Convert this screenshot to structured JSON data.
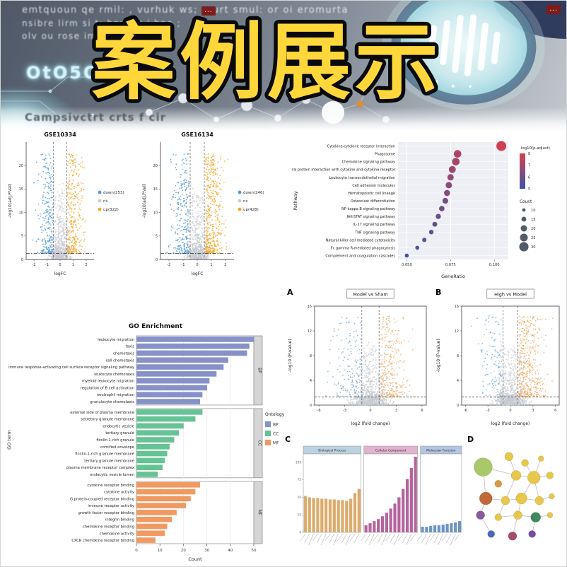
{
  "banner": {
    "title": "案例展示",
    "lines": [
      "emtquoun qe rmil: , vurhuk ws; :ourt smul: or oi eromurta",
      "nsibre lirm si t: hnwsiq i bno ;",
      "olv ou rose im-"
    ],
    "glow_text": "OtO5O1C",
    "caption": "Campsivctrt crts f cir",
    "badge": "...",
    "colors": {
      "title_fill": "#ffd73a",
      "title_stroke": "#0a0a0a",
      "accent_teal": "#bfe9ee",
      "bg_dark": "#515b69"
    }
  },
  "chart_data": [
    {
      "id": "volcano_gse10334",
      "type": "scatter",
      "subtype": "volcano",
      "title": "GSE10334",
      "xlabel": "logFC",
      "ylabel": "-log10(adj.P.Val)",
      "xlim": [
        -2.6,
        2.6
      ],
      "xticks": [
        -2,
        -1,
        0,
        1,
        2
      ],
      "ylim": [
        0,
        25
      ],
      "yticks": [
        0,
        5,
        10,
        15,
        20
      ],
      "vlines": [
        -0.5,
        0.5
      ],
      "hline": 1.3,
      "colors": {
        "down": "#4f9bd9",
        "ns": "#c8ccd2",
        "up": "#f5a623"
      },
      "counts": {
        "down": 253,
        "ns": 800,
        "up": 322
      },
      "legend": [
        {
          "label": "down(253)",
          "color": "#4f9bd9"
        },
        {
          "label": "ns",
          "color": "#c8ccd2"
        },
        {
          "label": "up(322)",
          "color": "#f5a623"
        }
      ],
      "seed": 7
    },
    {
      "id": "volcano_gse16134",
      "type": "scatter",
      "subtype": "volcano",
      "title": "GSE16134",
      "xlabel": "logFC",
      "ylabel": "-log10(adj.P.Val)",
      "xlim": [
        -2.6,
        2.6
      ],
      "xticks": [
        -2,
        -1,
        0,
        1,
        2
      ],
      "ylim": [
        0,
        25
      ],
      "yticks": [
        0,
        5,
        10,
        15,
        20
      ],
      "vlines": [
        -0.5,
        0.5
      ],
      "hline": 1.3,
      "colors": {
        "down": "#4f9bd9",
        "ns": "#c8ccd2",
        "up": "#f5a623"
      },
      "counts": {
        "down": 246,
        "ns": 800,
        "up": 428
      },
      "legend": [
        {
          "label": "down(246)",
          "color": "#4f9bd9"
        },
        {
          "label": "ns",
          "color": "#c8ccd2"
        },
        {
          "label": "up(428)",
          "color": "#f5a623"
        }
      ],
      "seed": 13
    },
    {
      "id": "kegg_dotplot",
      "type": "scatter",
      "subtype": "dotplot",
      "xlabel": "GeneRatio",
      "ylabel": "Pathway",
      "xlim": [
        0.045,
        0.108
      ],
      "xticks": [
        0.05,
        0.075,
        0.1
      ],
      "color_legend": {
        "title": "-log10(p.adjust)",
        "ticks": [
          8,
          7,
          6,
          5
        ],
        "high": "#d6404e",
        "low": "#3b54a4"
      },
      "size_legend": {
        "title": "Count",
        "values": [
          10,
          15,
          20,
          25,
          30
        ]
      },
      "rows": [
        {
          "pathway": "Cytokine-cytokine receptor interaction",
          "ratio": 0.104,
          "count": 32,
          "sig": 8.2
        },
        {
          "pathway": "Phagosome",
          "ratio": 0.079,
          "count": 24,
          "sig": 7.4
        },
        {
          "pathway": "Chemokine signaling pathway",
          "ratio": 0.078,
          "count": 24,
          "sig": 7.2
        },
        {
          "pathway": "Viral protein interaction with cytokine and cytokine receptor",
          "ratio": 0.076,
          "count": 22,
          "sig": 7.0
        },
        {
          "pathway": "Leukocyte transendothelial migration",
          "ratio": 0.075,
          "count": 20,
          "sig": 6.7
        },
        {
          "pathway": "Cell adhesion molecules",
          "ratio": 0.074,
          "count": 20,
          "sig": 6.4
        },
        {
          "pathway": "Hematopoietic cell lineage",
          "ratio": 0.073,
          "count": 19,
          "sig": 6.2
        },
        {
          "pathway": "Osteoclast differentiation",
          "ratio": 0.072,
          "count": 18,
          "sig": 6.0
        },
        {
          "pathway": "NF-kappa B signaling pathway",
          "ratio": 0.07,
          "count": 17,
          "sig": 5.8
        },
        {
          "pathway": "JAK-STAT signaling pathway",
          "ratio": 0.068,
          "count": 16,
          "sig": 5.6
        },
        {
          "pathway": "IL-17 signaling pathway",
          "ratio": 0.066,
          "count": 15,
          "sig": 5.4
        },
        {
          "pathway": "TNF signaling pathway",
          "ratio": 0.064,
          "count": 14,
          "sig": 5.2
        },
        {
          "pathway": "Natural killer cell mediated cytotoxicity",
          "ratio": 0.06,
          "count": 13,
          "sig": 5.0
        },
        {
          "pathway": "Fc gamma R-mediated phagocytosis",
          "ratio": 0.056,
          "count": 12,
          "sig": 4.8
        },
        {
          "pathway": "Complement and coagulation cascades",
          "ratio": 0.05,
          "count": 12,
          "sig": 4.6
        }
      ]
    },
    {
      "id": "go_enrichment",
      "type": "bar",
      "orientation": "horizontal",
      "title": "GO Enrichment",
      "xlabel": "Count",
      "ylabel": "GO term",
      "xlim": [
        0,
        50
      ],
      "xticks": [
        0,
        10,
        20,
        30,
        40,
        50
      ],
      "legend_title": "Ontology",
      "groups": [
        {
          "name": "BP",
          "color": "#8791c9",
          "terms": [
            {
              "term": "leukocyte migration",
              "count": 50
            },
            {
              "term": "taxis",
              "count": 48
            },
            {
              "term": "chemotaxis",
              "count": 47
            },
            {
              "term": "cell chemotaxis",
              "count": 39
            },
            {
              "term": "immune response-activating cell surface receptor signaling pathway",
              "count": 37
            },
            {
              "term": "leukocyte chemotaxis",
              "count": 34
            },
            {
              "term": "myeloid leukocyte migration",
              "count": 31
            },
            {
              "term": "regulation of B cell activation",
              "count": 30
            },
            {
              "term": "neutrophil migration",
              "count": 28
            },
            {
              "term": "granulocyte chemotaxis",
              "count": 27
            }
          ]
        },
        {
          "name": "CC",
          "color": "#66c394",
          "terms": [
            {
              "term": "external side of plasma membrane",
              "count": 28
            },
            {
              "term": "secretory granule membrane",
              "count": 25
            },
            {
              "term": "endocytic vesicle",
              "count": 20
            },
            {
              "term": "tertiary granule",
              "count": 18
            },
            {
              "term": "ficolin-1-rich granule",
              "count": 16
            },
            {
              "term": "cornified envelope",
              "count": 14
            },
            {
              "term": "ficolin-1-rich granule membrane",
              "count": 13
            },
            {
              "term": "tertiary granule membrane",
              "count": 12
            },
            {
              "term": "plasma membrane receptor complex",
              "count": 11
            },
            {
              "term": "endocytic vesicle lumen",
              "count": 9
            }
          ]
        },
        {
          "name": "MF",
          "color": "#f09a62",
          "terms": [
            {
              "term": "cytokine receptor binding",
              "count": 27
            },
            {
              "term": "cytokine activity",
              "count": 25
            },
            {
              "term": "G protein-coupled receptor binding",
              "count": 23
            },
            {
              "term": "immune receptor activity",
              "count": 21
            },
            {
              "term": "growth factor receptor binding",
              "count": 17
            },
            {
              "term": "integrin binding",
              "count": 15
            },
            {
              "term": "chemokine receptor binding",
              "count": 13
            },
            {
              "term": "chemokine activity",
              "count": 12
            },
            {
              "term": "CXCR chemokine receptor binding",
              "count": 8
            }
          ]
        }
      ]
    },
    {
      "id": "volcano_model_sham",
      "type": "scatter",
      "subtype": "volcano",
      "label": "A",
      "title": "Model vs Sham",
      "xlabel": "log2 (fold change)",
      "ylabel": "-log10 (P-value)",
      "xlim": [
        -6.5,
        6.5
      ],
      "xticks": [
        -6,
        -3,
        0,
        3,
        6
      ],
      "ylim": [
        0,
        16
      ],
      "yticks": [
        0,
        4,
        8,
        12,
        16
      ],
      "vlines": [
        -1,
        1
      ],
      "hline": 1.3,
      "colors": {
        "down": "#6aa5d8",
        "ns": "#c8ccd2",
        "up": "#f0a95c"
      },
      "counts": {
        "down": 140,
        "ns": 1100,
        "up": 300
      },
      "seed": 21
    },
    {
      "id": "volcano_high_model",
      "type": "scatter",
      "subtype": "volcano",
      "label": "B",
      "title": "High vs Model",
      "xlabel": "log2 (fold change)",
      "ylabel": "-log10 (P-value)",
      "xlim": [
        -6.5,
        6.5
      ],
      "xticks": [
        -6,
        -3,
        0,
        3,
        6
      ],
      "ylim": [
        0,
        16
      ],
      "yticks": [
        0,
        4,
        8,
        12,
        16
      ],
      "vlines": [
        -1,
        1
      ],
      "hline": 1.3,
      "colors": {
        "down": "#6aa5d8",
        "ns": "#c8ccd2",
        "up": "#f0a95c"
      },
      "counts": {
        "down": 110,
        "ns": 1100,
        "up": 430
      },
      "seed": 22
    },
    {
      "id": "go_bar_facets",
      "type": "bar",
      "label": "C",
      "ymax": 112,
      "yticks": [
        0,
        25,
        50,
        75,
        100
      ],
      "facets": [
        {
          "title": "Biological Process",
          "color": "#ddab6b",
          "strip": "#bcd2e2",
          "values": [
            52,
            50,
            49,
            49,
            48,
            48,
            47,
            47,
            46,
            46,
            45,
            48,
            56,
            62
          ]
        },
        {
          "title": "Cellular Component",
          "color": "#b5649c",
          "strip": "#e3b3cd",
          "values": [
            10,
            13,
            16,
            19,
            23,
            28,
            34,
            41,
            50,
            62,
            76,
            92,
            108
          ]
        },
        {
          "title": "Molecular Function",
          "color": "#6d94c4",
          "strip": "#b3c6e3",
          "values": [
            8,
            8,
            9,
            10,
            10,
            11,
            12,
            13,
            14,
            16
          ]
        }
      ]
    },
    {
      "id": "gene_network",
      "type": "network",
      "label": "D",
      "nodes": [
        {
          "x": 0.13,
          "y": 0.2,
          "r": 13,
          "color": "#a8c96a"
        },
        {
          "x": 0.42,
          "y": 0.1,
          "r": 6,
          "color": "#e8c84a"
        },
        {
          "x": 0.6,
          "y": 0.16,
          "r": 5,
          "color": "#e8c84a"
        },
        {
          "x": 0.78,
          "y": 0.12,
          "r": 4,
          "color": "#e8c84a"
        },
        {
          "x": 0.5,
          "y": 0.28,
          "r": 7,
          "color": "#e8c84a"
        },
        {
          "x": 0.7,
          "y": 0.3,
          "r": 9,
          "color": "#e8c84a"
        },
        {
          "x": 0.88,
          "y": 0.28,
          "r": 5,
          "color": "#e8c84a"
        },
        {
          "x": 0.3,
          "y": 0.36,
          "r": 5,
          "color": "#d89a3e"
        },
        {
          "x": 0.16,
          "y": 0.5,
          "r": 9,
          "color": "#c06a3a"
        },
        {
          "x": 0.38,
          "y": 0.52,
          "r": 6,
          "color": "#e8c84a"
        },
        {
          "x": 0.56,
          "y": 0.5,
          "r": 8,
          "color": "#e8c84a"
        },
        {
          "x": 0.76,
          "y": 0.52,
          "r": 6,
          "color": "#e8c84a"
        },
        {
          "x": 0.9,
          "y": 0.48,
          "r": 4,
          "color": "#e8c84a"
        },
        {
          "x": 0.1,
          "y": 0.66,
          "r": 6,
          "color": "#8a5a9a"
        },
        {
          "x": 0.3,
          "y": 0.68,
          "r": 5,
          "color": "#e8c84a"
        },
        {
          "x": 0.52,
          "y": 0.66,
          "r": 6,
          "color": "#e8c84a"
        },
        {
          "x": 0.72,
          "y": 0.68,
          "r": 7,
          "color": "#3e8a5a"
        },
        {
          "x": 0.88,
          "y": 0.66,
          "r": 4,
          "color": "#e8c84a"
        },
        {
          "x": 0.22,
          "y": 0.84,
          "r": 5,
          "color": "#4a6ab8"
        },
        {
          "x": 0.46,
          "y": 0.86,
          "r": 6,
          "color": "#a84a6a"
        },
        {
          "x": 0.68,
          "y": 0.84,
          "r": 5,
          "color": "#7a4aa8"
        }
      ],
      "edges": [
        [
          0,
          4
        ],
        [
          0,
          8
        ],
        [
          1,
          4
        ],
        [
          2,
          5
        ],
        [
          3,
          5
        ],
        [
          4,
          5
        ],
        [
          4,
          9
        ],
        [
          5,
          6
        ],
        [
          5,
          11
        ],
        [
          8,
          9
        ],
        [
          8,
          13
        ],
        [
          9,
          10
        ],
        [
          10,
          11
        ],
        [
          10,
          15
        ],
        [
          11,
          12
        ],
        [
          13,
          18
        ],
        [
          14,
          15
        ],
        [
          15,
          16
        ],
        [
          15,
          19
        ],
        [
          16,
          17
        ],
        [
          16,
          20
        ],
        [
          9,
          14
        ],
        [
          5,
          10
        ]
      ]
    }
  ]
}
